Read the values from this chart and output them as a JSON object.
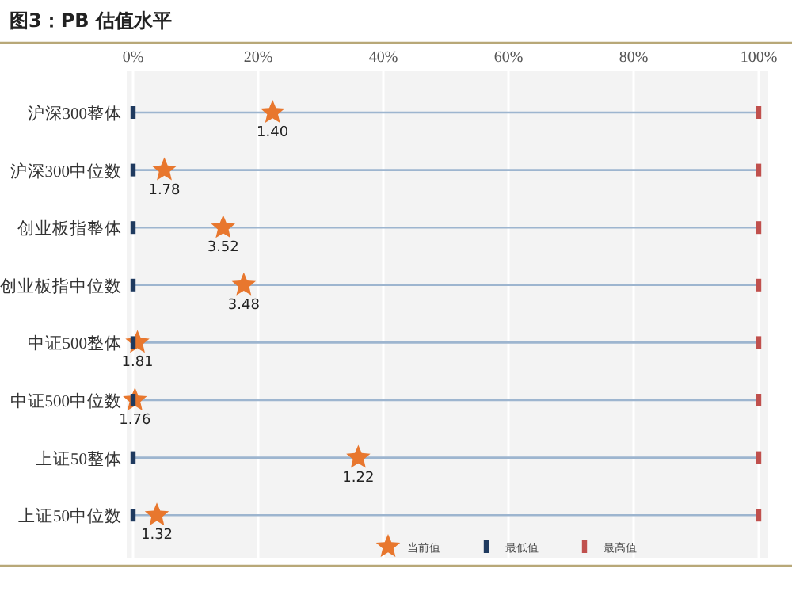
{
  "chart_data": {
    "type": "scatter",
    "orientation": "horizontal",
    "title": "图3：PB 估值水平",
    "categories": [
      "沪深300整体",
      "沪深300中位数",
      "创业板指整体",
      "创业板指中位数",
      "中证500整体",
      "中证500中位数",
      "上证50整体",
      "上证50中位数"
    ],
    "xlim": [
      0,
      100
    ],
    "xticks": [
      {
        "value": 0,
        "label": "0%"
      },
      {
        "value": 20,
        "label": "20%"
      },
      {
        "value": 40,
        "label": "40%"
      },
      {
        "value": 60,
        "label": "60%"
      },
      {
        "value": 80,
        "label": "80%"
      },
      {
        "value": 100,
        "label": "100%"
      }
    ],
    "grid": true,
    "legend": "bottom right",
    "annotations": [
      {
        "text": "1.40",
        "x": 22.3,
        "y": "沪深300整体"
      },
      {
        "text": "1.78",
        "x": 5,
        "y": "沪深300中位数"
      },
      {
        "text": "3.52",
        "x": 14.4,
        "y": "创业板指整体"
      },
      {
        "text": "3.48",
        "x": 17.7,
        "y": "创业板指中位数"
      },
      {
        "text": "1.81",
        "x": 0.7,
        "y": "中证500整体"
      },
      {
        "text": "1.76",
        "x": 0.3,
        "y": "中证500中位数"
      },
      {
        "text": "1.22",
        "x": 36,
        "y": "上证50整体"
      },
      {
        "text": "1.32",
        "x": 3.8,
        "y": "上证50中位数"
      }
    ],
    "series": [
      {
        "name": "当前值",
        "color": "#e8772e",
        "marker": "star",
        "values": [
          22.3,
          5,
          14.4,
          17.7,
          0.7,
          0.3,
          36,
          3.8
        ]
      },
      {
        "name": "最低值",
        "color": "#1f3a5f",
        "marker": "square",
        "values": [
          0,
          0,
          0,
          0,
          0,
          0,
          0,
          0
        ]
      },
      {
        "name": "最高值",
        "color": "#c0504d",
        "marker": "square",
        "values": [
          100,
          100,
          100,
          100,
          100,
          100,
          100,
          100
        ]
      }
    ]
  }
}
